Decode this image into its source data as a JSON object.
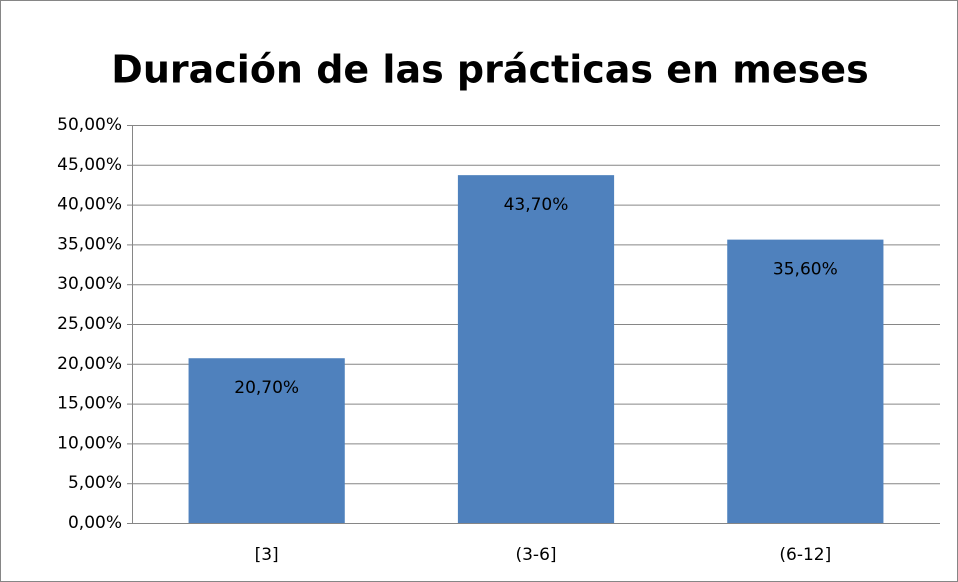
{
  "chart_data": {
    "type": "bar",
    "title": "Duración de las prácticas en meses",
    "categories": [
      "[3]",
      "(3-6]",
      "(6-12]"
    ],
    "values": [
      20.7,
      43.7,
      35.6
    ],
    "value_labels": [
      "20,70%",
      "43,70%",
      "35,60%"
    ],
    "color": "#4f81bd",
    "ylim": [
      0,
      50
    ],
    "yticks": [
      {
        "value": 0,
        "label": "0,00%"
      },
      {
        "value": 5,
        "label": "5,00%"
      },
      {
        "value": 10,
        "label": "10,00%"
      },
      {
        "value": 15,
        "label": "15,00%"
      },
      {
        "value": 20,
        "label": "20,00%"
      },
      {
        "value": 25,
        "label": "25,00%"
      },
      {
        "value": 30,
        "label": "30,00%"
      },
      {
        "value": 35,
        "label": "35,00%"
      },
      {
        "value": 40,
        "label": "40,00%"
      },
      {
        "value": 45,
        "label": "45,00%"
      },
      {
        "value": 50,
        "label": "50,00%"
      }
    ],
    "grid": true
  }
}
